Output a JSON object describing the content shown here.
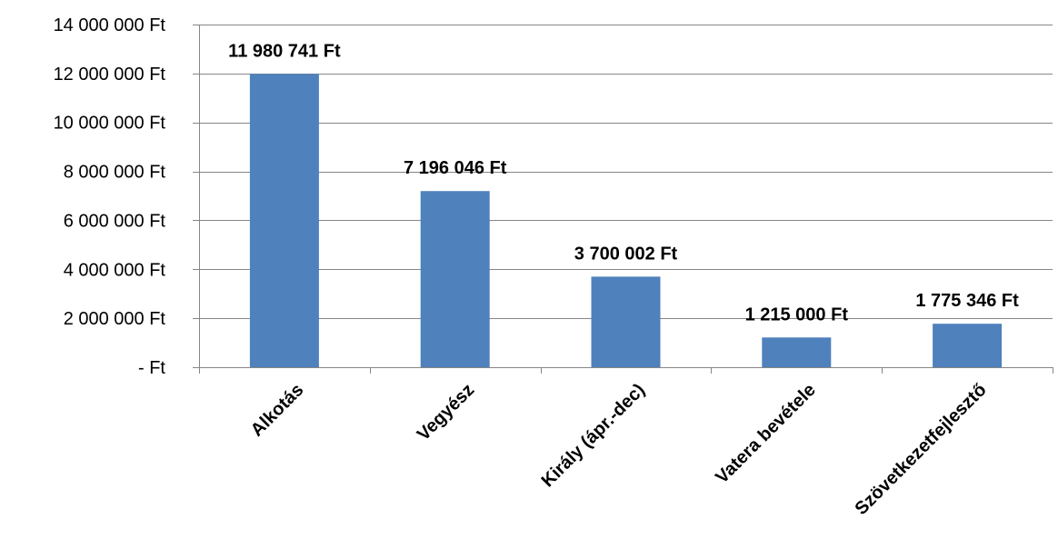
{
  "chart_data": {
    "type": "bar",
    "title": "",
    "xlabel": "",
    "ylabel": "",
    "categories": [
      "Alkotás",
      "Vegyész",
      "Király (ápr.-dec)",
      "Vatera bevétele",
      "Szövetkezetfejlesztő"
    ],
    "values": [
      11980741,
      7196046,
      3700002,
      1215000,
      1775346
    ],
    "data_labels": [
      "11 980 741 Ft",
      "7 196 046 Ft",
      "3 700 002 Ft",
      "1 215 000 Ft",
      "1 775 346 Ft"
    ],
    "ylim": [
      0,
      14000000
    ],
    "y_ticks": [
      0,
      2000000,
      4000000,
      6000000,
      8000000,
      10000000,
      12000000,
      14000000
    ],
    "y_tick_labels": [
      "- Ft",
      "2 000 000 Ft",
      "4 000 000 Ft",
      "6 000 000 Ft",
      "8 000 000 Ft",
      "10 000 000 Ft",
      "12 000 000 Ft",
      "14 000 000 Ft"
    ],
    "grid": true,
    "legend": "none",
    "colors": {
      "bar": "#4f81bd",
      "grid": "#868686",
      "axis": "#868686",
      "text": "#000000"
    }
  }
}
